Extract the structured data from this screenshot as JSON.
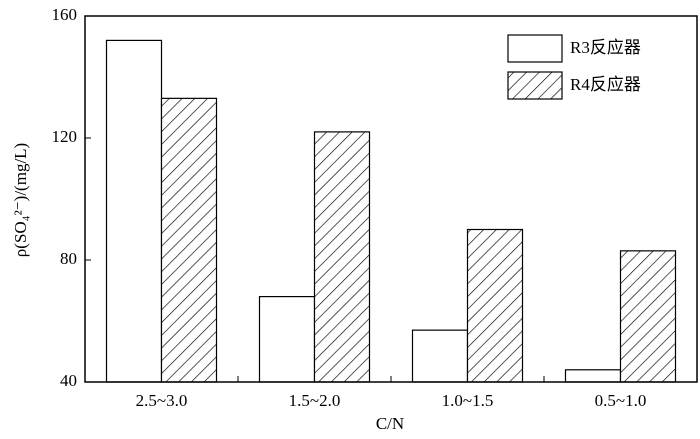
{
  "chart_data": {
    "type": "bar",
    "categories": [
      "2.5~3.0",
      "1.5~2.0",
      "1.0~1.5",
      "0.5~1.0"
    ],
    "series": [
      {
        "name": "R3反应器",
        "color": "#000000",
        "pattern": "none",
        "values": [
          152,
          68,
          57,
          44
        ]
      },
      {
        "name": "R4反应器",
        "color": "#000000",
        "pattern": "hatch",
        "values": [
          133,
          122,
          90,
          83
        ]
      }
    ],
    "xlabel": "C/N",
    "ylabel": "ρ(SO₄²⁻)/(mg/L)",
    "ylim": [
      40,
      160
    ],
    "yticks": [
      40,
      80,
      120,
      160
    ],
    "legend": "upper right"
  }
}
